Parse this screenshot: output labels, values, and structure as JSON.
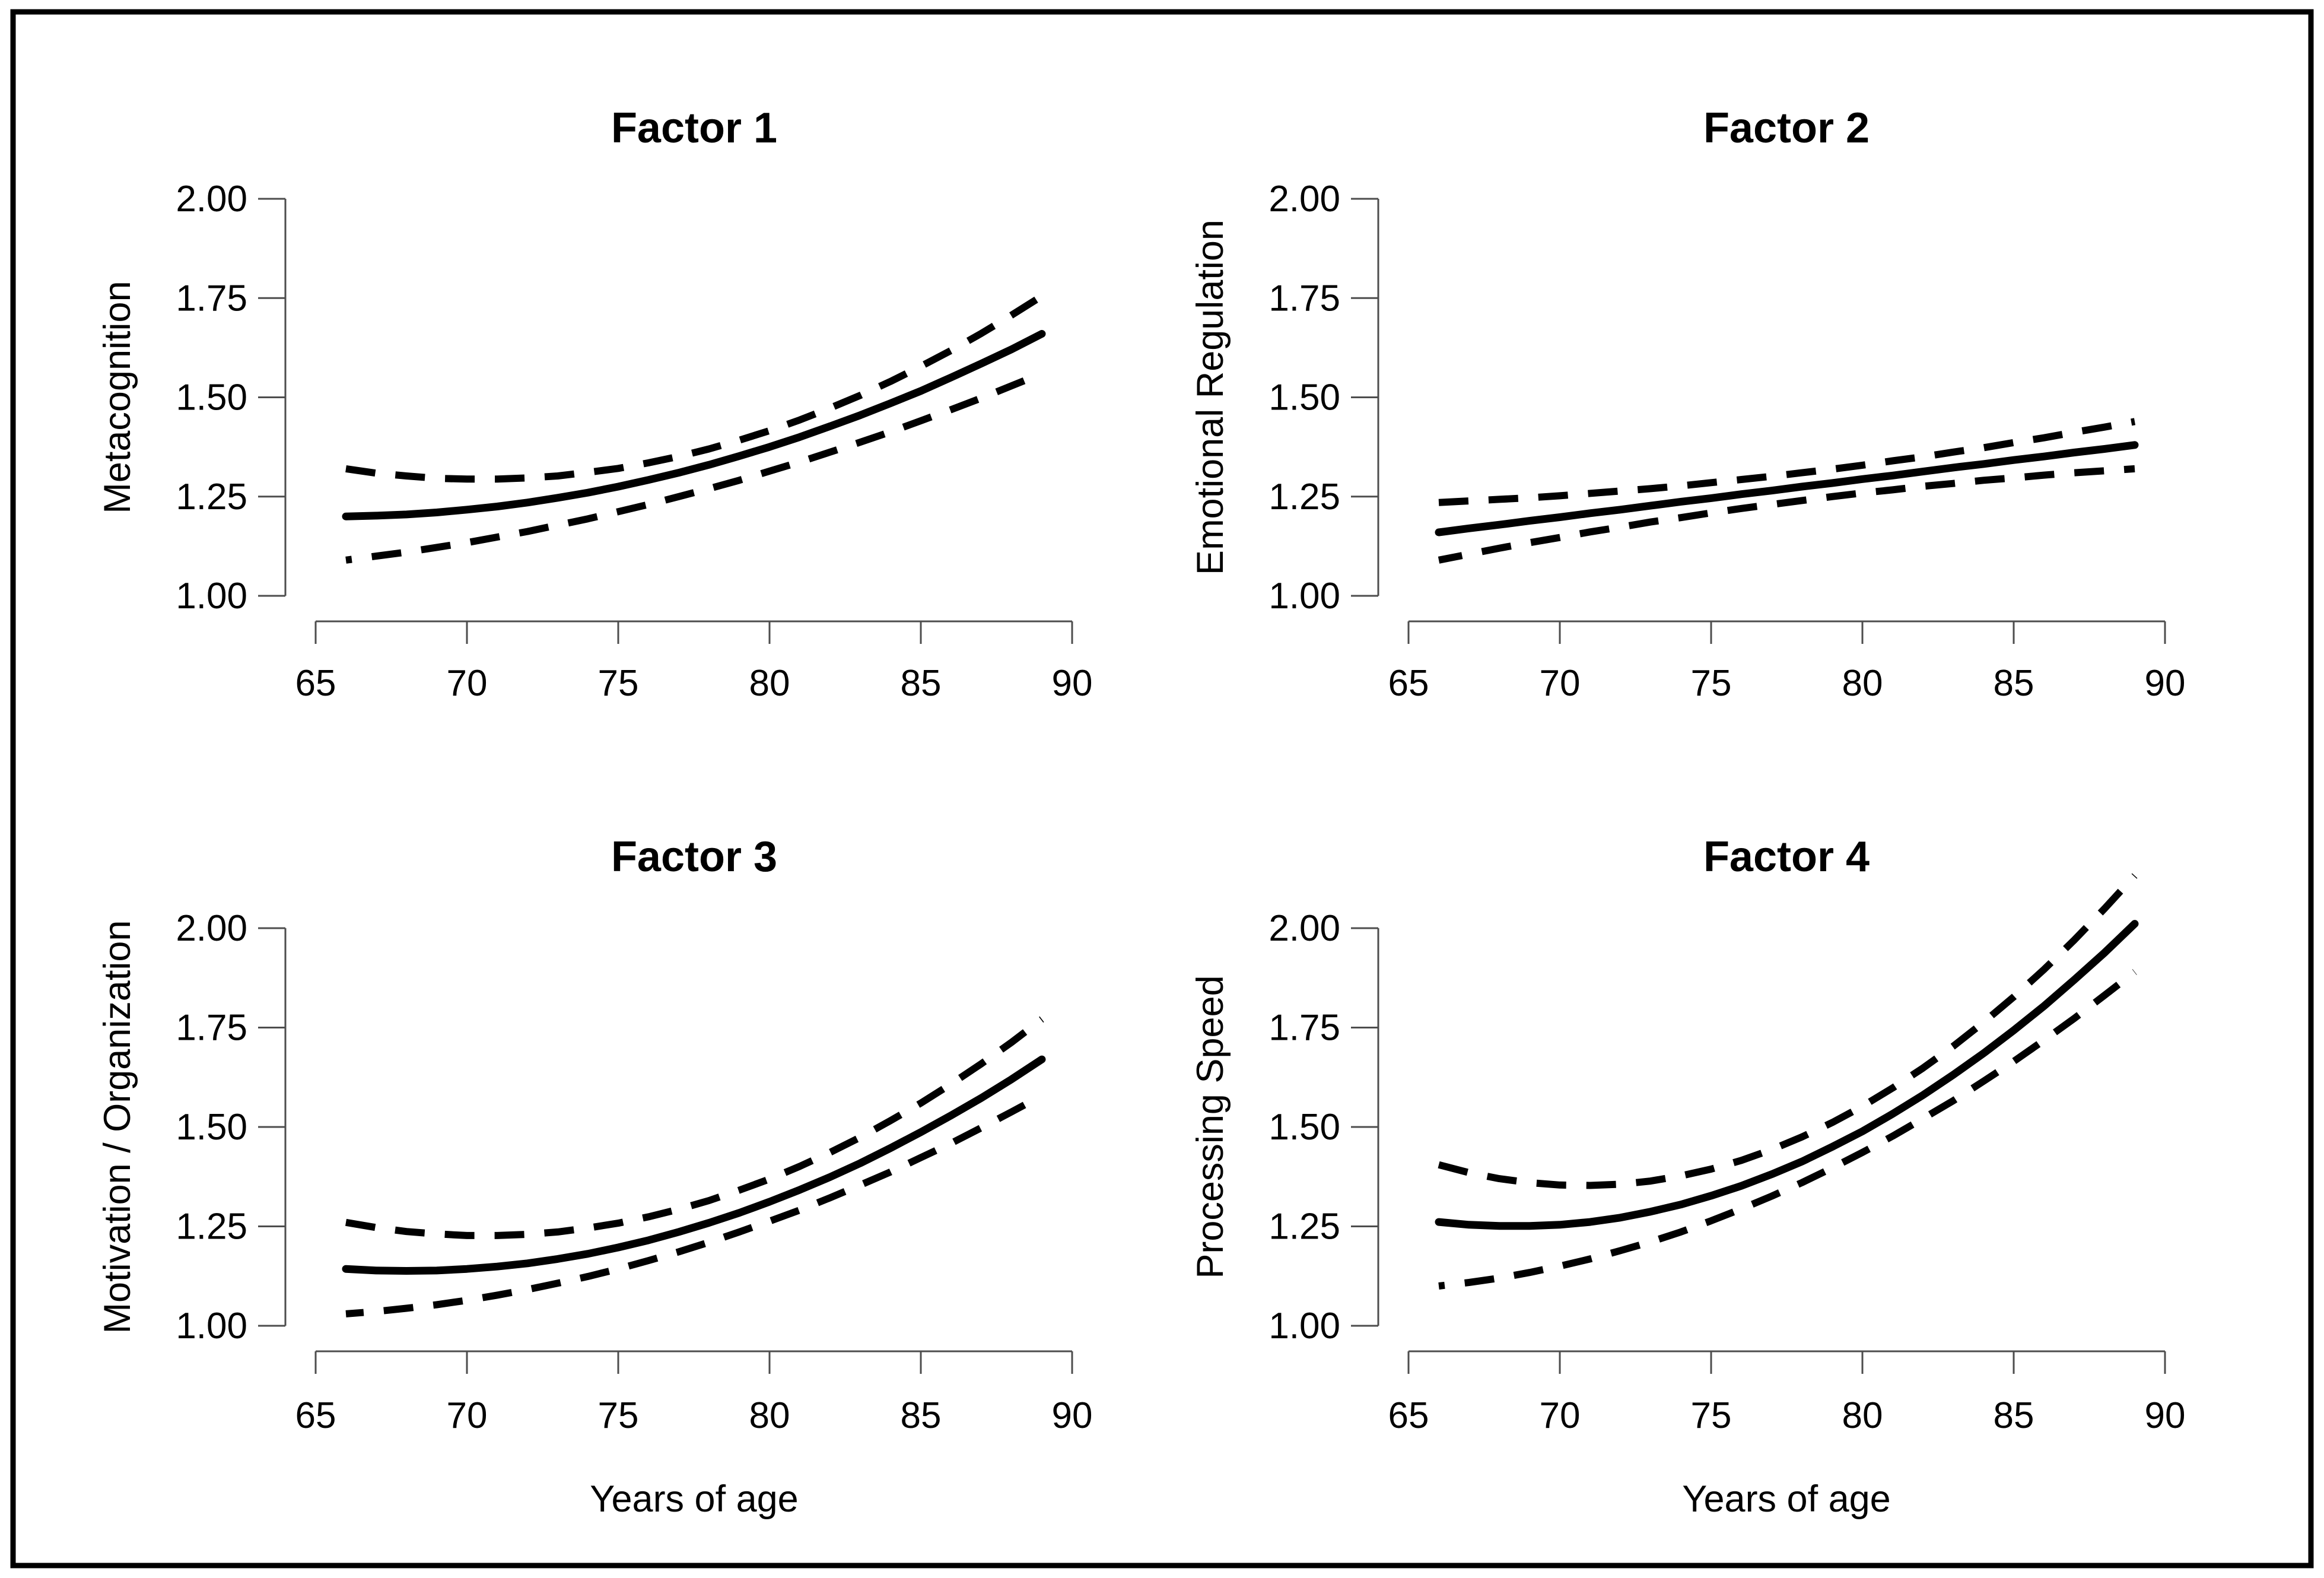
{
  "figure": {
    "background": "#ffffff",
    "frame_color": "#000000",
    "line_color": "#000000",
    "x_axis_title": "Years of age"
  },
  "chart_data": [
    {
      "type": "line",
      "title": "Factor 1",
      "ylabel": "Metacognition",
      "xlabel": "",
      "xlim": [
        65,
        90
      ],
      "ylim": [
        1.0,
        2.0
      ],
      "x_ticks": [
        65,
        70,
        75,
        80,
        85,
        90
      ],
      "y_tick_labels": [
        "1.00",
        "1.25",
        "1.50",
        "1.75",
        "2.00"
      ],
      "grid": false,
      "legend": "none",
      "x": [
        66,
        67,
        68,
        69,
        70,
        71,
        72,
        73,
        74,
        75,
        76,
        77,
        78,
        79,
        80,
        81,
        82,
        83,
        84,
        85,
        86,
        87,
        88,
        89
      ],
      "series": [
        {
          "name": "solid-estimate",
          "style": "solid",
          "values": [
            1.2,
            1.202,
            1.205,
            1.21,
            1.217,
            1.225,
            1.235,
            1.247,
            1.26,
            1.275,
            1.292,
            1.31,
            1.33,
            1.352,
            1.375,
            1.4,
            1.427,
            1.455,
            1.485,
            1.516,
            1.55,
            1.585,
            1.621,
            1.66
          ]
        },
        {
          "name": "dashed-upper-band",
          "style": "dashed",
          "values": [
            1.32,
            1.309,
            1.302,
            1.296,
            1.294,
            1.294,
            1.297,
            1.302,
            1.311,
            1.321,
            1.335,
            1.351,
            1.37,
            1.392,
            1.416,
            1.443,
            1.473,
            1.505,
            1.54,
            1.578,
            1.618,
            1.661,
            1.707,
            1.755
          ]
        },
        {
          "name": "dashed-lower-band",
          "style": "dashed",
          "values": [
            1.09,
            1.1,
            1.11,
            1.122,
            1.134,
            1.148,
            1.162,
            1.178,
            1.194,
            1.212,
            1.23,
            1.25,
            1.27,
            1.291,
            1.314,
            1.337,
            1.362,
            1.387,
            1.413,
            1.441,
            1.469,
            1.498,
            1.529,
            1.56
          ]
        }
      ]
    },
    {
      "type": "line",
      "title": "Factor 2",
      "ylabel": "Emotional Regulation",
      "xlabel": "",
      "xlim": [
        65,
        90
      ],
      "ylim": [
        1.0,
        2.0
      ],
      "x_ticks": [
        65,
        70,
        75,
        80,
        85,
        90
      ],
      "y_tick_labels": [
        "1.00",
        "1.25",
        "1.50",
        "1.75",
        "2.00"
      ],
      "grid": false,
      "legend": "none",
      "x": [
        66,
        67,
        68,
        69,
        70,
        71,
        72,
        73,
        74,
        75,
        76,
        77,
        78,
        79,
        80,
        81,
        82,
        83,
        84,
        85,
        86,
        87,
        88,
        89
      ],
      "series": [
        {
          "name": "solid-estimate",
          "style": "solid",
          "values": [
            1.16,
            1.17,
            1.179,
            1.189,
            1.198,
            1.208,
            1.217,
            1.227,
            1.237,
            1.246,
            1.256,
            1.265,
            1.275,
            1.284,
            1.294,
            1.303,
            1.313,
            1.323,
            1.332,
            1.342,
            1.351,
            1.361,
            1.37,
            1.38
          ]
        },
        {
          "name": "dashed-upper-band",
          "style": "dashed",
          "values": [
            1.235,
            1.239,
            1.243,
            1.247,
            1.252,
            1.258,
            1.264,
            1.27,
            1.277,
            1.285,
            1.293,
            1.301,
            1.31,
            1.319,
            1.329,
            1.34,
            1.35,
            1.362,
            1.373,
            1.386,
            1.398,
            1.412,
            1.425,
            1.439
          ]
        },
        {
          "name": "dashed-lower-band",
          "style": "dashed",
          "values": [
            1.09,
            1.105,
            1.12,
            1.134,
            1.147,
            1.161,
            1.173,
            1.186,
            1.197,
            1.209,
            1.22,
            1.23,
            1.24,
            1.25,
            1.259,
            1.267,
            1.276,
            1.283,
            1.291,
            1.297,
            1.304,
            1.31,
            1.315,
            1.32
          ]
        }
      ]
    },
    {
      "type": "line",
      "title": "Factor 3",
      "ylabel": "Motivation / Organization",
      "xlabel": "Years of age",
      "xlim": [
        65,
        90
      ],
      "ylim": [
        1.0,
        2.0
      ],
      "x_ticks": [
        65,
        70,
        75,
        80,
        85,
        90
      ],
      "y_tick_labels": [
        "1.00",
        "1.25",
        "1.50",
        "1.75",
        "2.00"
      ],
      "grid": false,
      "legend": "none",
      "x": [
        66,
        67,
        68,
        69,
        70,
        71,
        72,
        73,
        74,
        75,
        76,
        77,
        78,
        79,
        80,
        81,
        82,
        83,
        84,
        85,
        86,
        87,
        88,
        89
      ],
      "series": [
        {
          "name": "solid-estimate",
          "style": "solid",
          "values": [
            1.143,
            1.139,
            1.138,
            1.139,
            1.143,
            1.149,
            1.157,
            1.168,
            1.181,
            1.197,
            1.215,
            1.236,
            1.259,
            1.284,
            1.312,
            1.342,
            1.374,
            1.409,
            1.447,
            1.487,
            1.529,
            1.573,
            1.62,
            1.67
          ]
        },
        {
          "name": "dashed-upper-band",
          "style": "dashed",
          "values": [
            1.26,
            1.247,
            1.237,
            1.231,
            1.227,
            1.227,
            1.23,
            1.236,
            1.246,
            1.258,
            1.274,
            1.293,
            1.315,
            1.341,
            1.369,
            1.401,
            1.436,
            1.474,
            1.516,
            1.56,
            1.608,
            1.659,
            1.713,
            1.771
          ]
        },
        {
          "name": "dashed-lower-band",
          "style": "dashed",
          "values": [
            1.03,
            1.036,
            1.044,
            1.053,
            1.064,
            1.077,
            1.091,
            1.107,
            1.124,
            1.143,
            1.164,
            1.186,
            1.21,
            1.236,
            1.263,
            1.291,
            1.322,
            1.354,
            1.387,
            1.423,
            1.459,
            1.498,
            1.538,
            1.579
          ]
        }
      ]
    },
    {
      "type": "line",
      "title": "Factor 4",
      "ylabel": "Processing Speed",
      "xlabel": "Years of age",
      "xlim": [
        65,
        90
      ],
      "ylim": [
        1.0,
        2.0
      ],
      "x_ticks": [
        65,
        70,
        75,
        80,
        85,
        90
      ],
      "y_tick_labels": [
        "1.00",
        "1.25",
        "1.50",
        "1.75",
        "2.00"
      ],
      "grid": false,
      "legend": "none",
      "x": [
        66,
        67,
        68,
        69,
        70,
        71,
        72,
        73,
        74,
        75,
        76,
        77,
        78,
        79,
        80,
        81,
        82,
        83,
        84,
        85,
        86,
        87,
        88,
        89
      ],
      "series": [
        {
          "name": "solid-estimate",
          "style": "solid",
          "values": [
            1.261,
            1.254,
            1.251,
            1.251,
            1.254,
            1.261,
            1.272,
            1.287,
            1.305,
            1.327,
            1.352,
            1.381,
            1.413,
            1.45,
            1.489,
            1.533,
            1.58,
            1.631,
            1.685,
            1.743,
            1.804,
            1.87,
            1.938,
            2.011
          ]
        },
        {
          "name": "dashed-upper-band",
          "style": "dashed",
          "values": [
            1.405,
            1.385,
            1.37,
            1.36,
            1.354,
            1.353,
            1.356,
            1.364,
            1.377,
            1.394,
            1.416,
            1.443,
            1.475,
            1.511,
            1.552,
            1.598,
            1.648,
            1.703,
            1.763,
            1.827,
            1.896,
            1.97,
            2.049,
            2.132
          ]
        },
        {
          "name": "dashed-lower-band",
          "style": "dashed",
          "values": [
            1.1,
            1.109,
            1.12,
            1.134,
            1.15,
            1.168,
            1.189,
            1.211,
            1.236,
            1.264,
            1.294,
            1.326,
            1.36,
            1.397,
            1.436,
            1.477,
            1.521,
            1.566,
            1.615,
            1.665,
            1.718,
            1.773,
            1.831,
            1.89
          ]
        }
      ]
    }
  ]
}
